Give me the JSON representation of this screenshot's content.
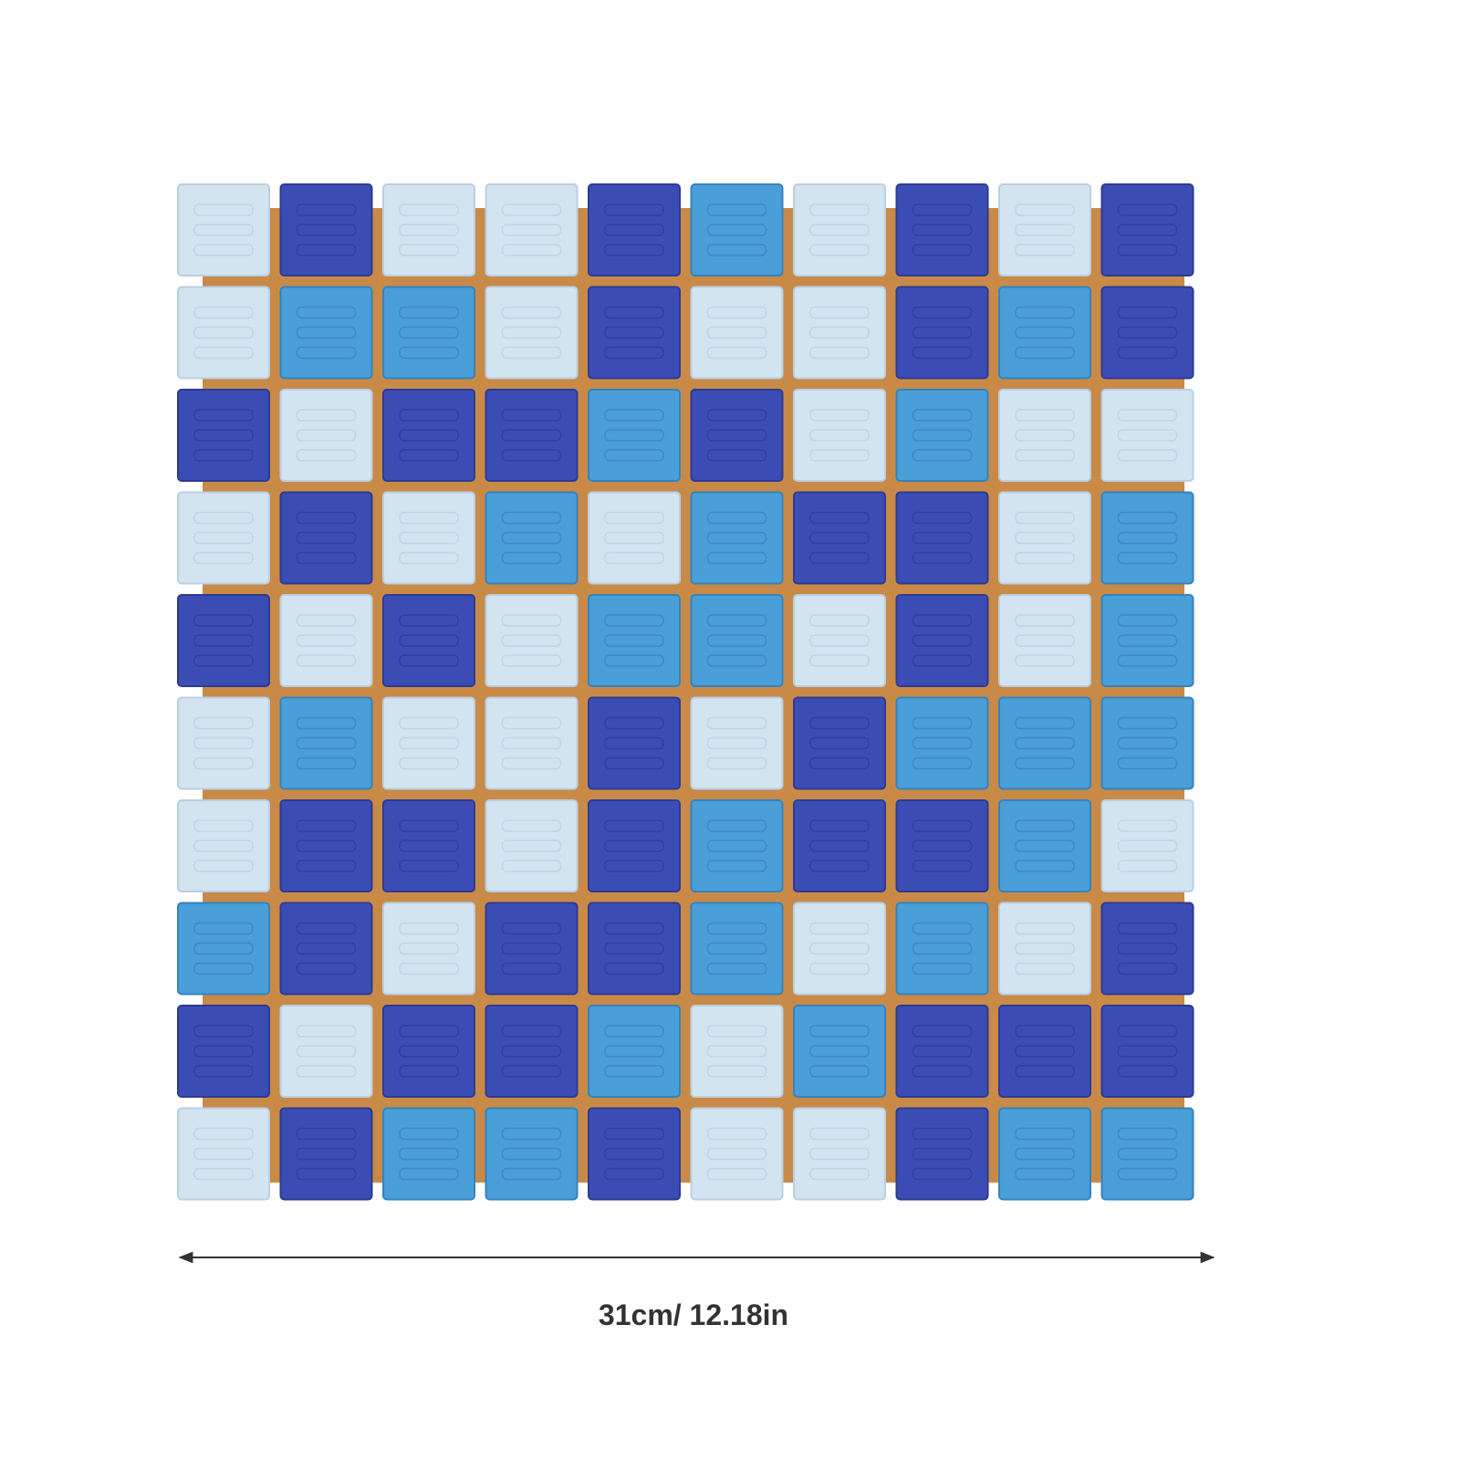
{
  "dimension_label": "31cm/ 12.18in"
}
